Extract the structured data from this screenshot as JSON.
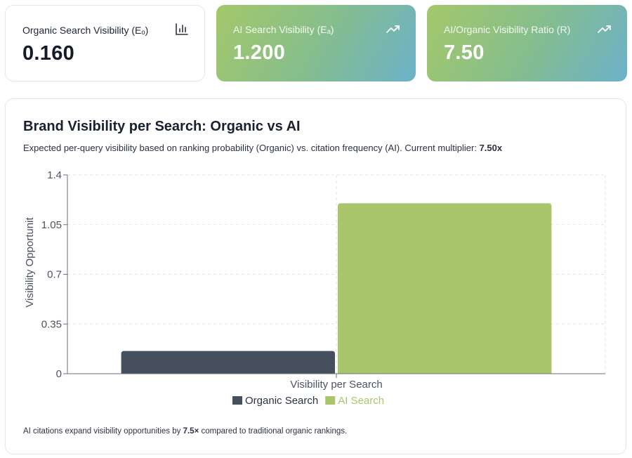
{
  "stats": [
    {
      "label": "Organic Search Visibility (Eₒ)",
      "value": "0.160",
      "icon": "bar-chart-icon"
    },
    {
      "label": "AI Search Visibility (Eₐ)",
      "value": "1.200",
      "icon": "trending-up-icon"
    },
    {
      "label": "AI/Organic Visibility Ratio (R)",
      "value": "7.50",
      "icon": "trending-up-icon"
    }
  ],
  "chart_card": {
    "title": "Brand Visibility per Search: Organic vs AI",
    "subtitle_text": "Expected per-query visibility based on ranking probability (Organic) vs. citation frequency (AI). Current multiplier: ",
    "subtitle_strong": "7.50x",
    "footnote_pre": "AI citations expand visibility opportunities by ",
    "footnote_strong": "7.5×",
    "footnote_post": " compared to traditional organic rankings."
  },
  "chart_data": {
    "type": "bar",
    "categories": [
      "Visibility per Search"
    ],
    "series": [
      {
        "name": "Organic Search",
        "values": [
          0.16
        ],
        "color": "#464f5e"
      },
      {
        "name": "AI Search",
        "values": [
          1.2
        ],
        "color": "#a9c76a"
      }
    ],
    "xlabel": "Visibility per Search",
    "ylabel": "Visibility Opportunit",
    "ylim": [
      0,
      1.4
    ],
    "yticks": [
      0,
      0.35,
      0.7,
      1.05,
      1.4
    ],
    "ytick_labels": [
      "0",
      "0.35",
      "0.7",
      "1.05",
      "1.4"
    ],
    "grid": true,
    "legend_position": "bottom"
  }
}
